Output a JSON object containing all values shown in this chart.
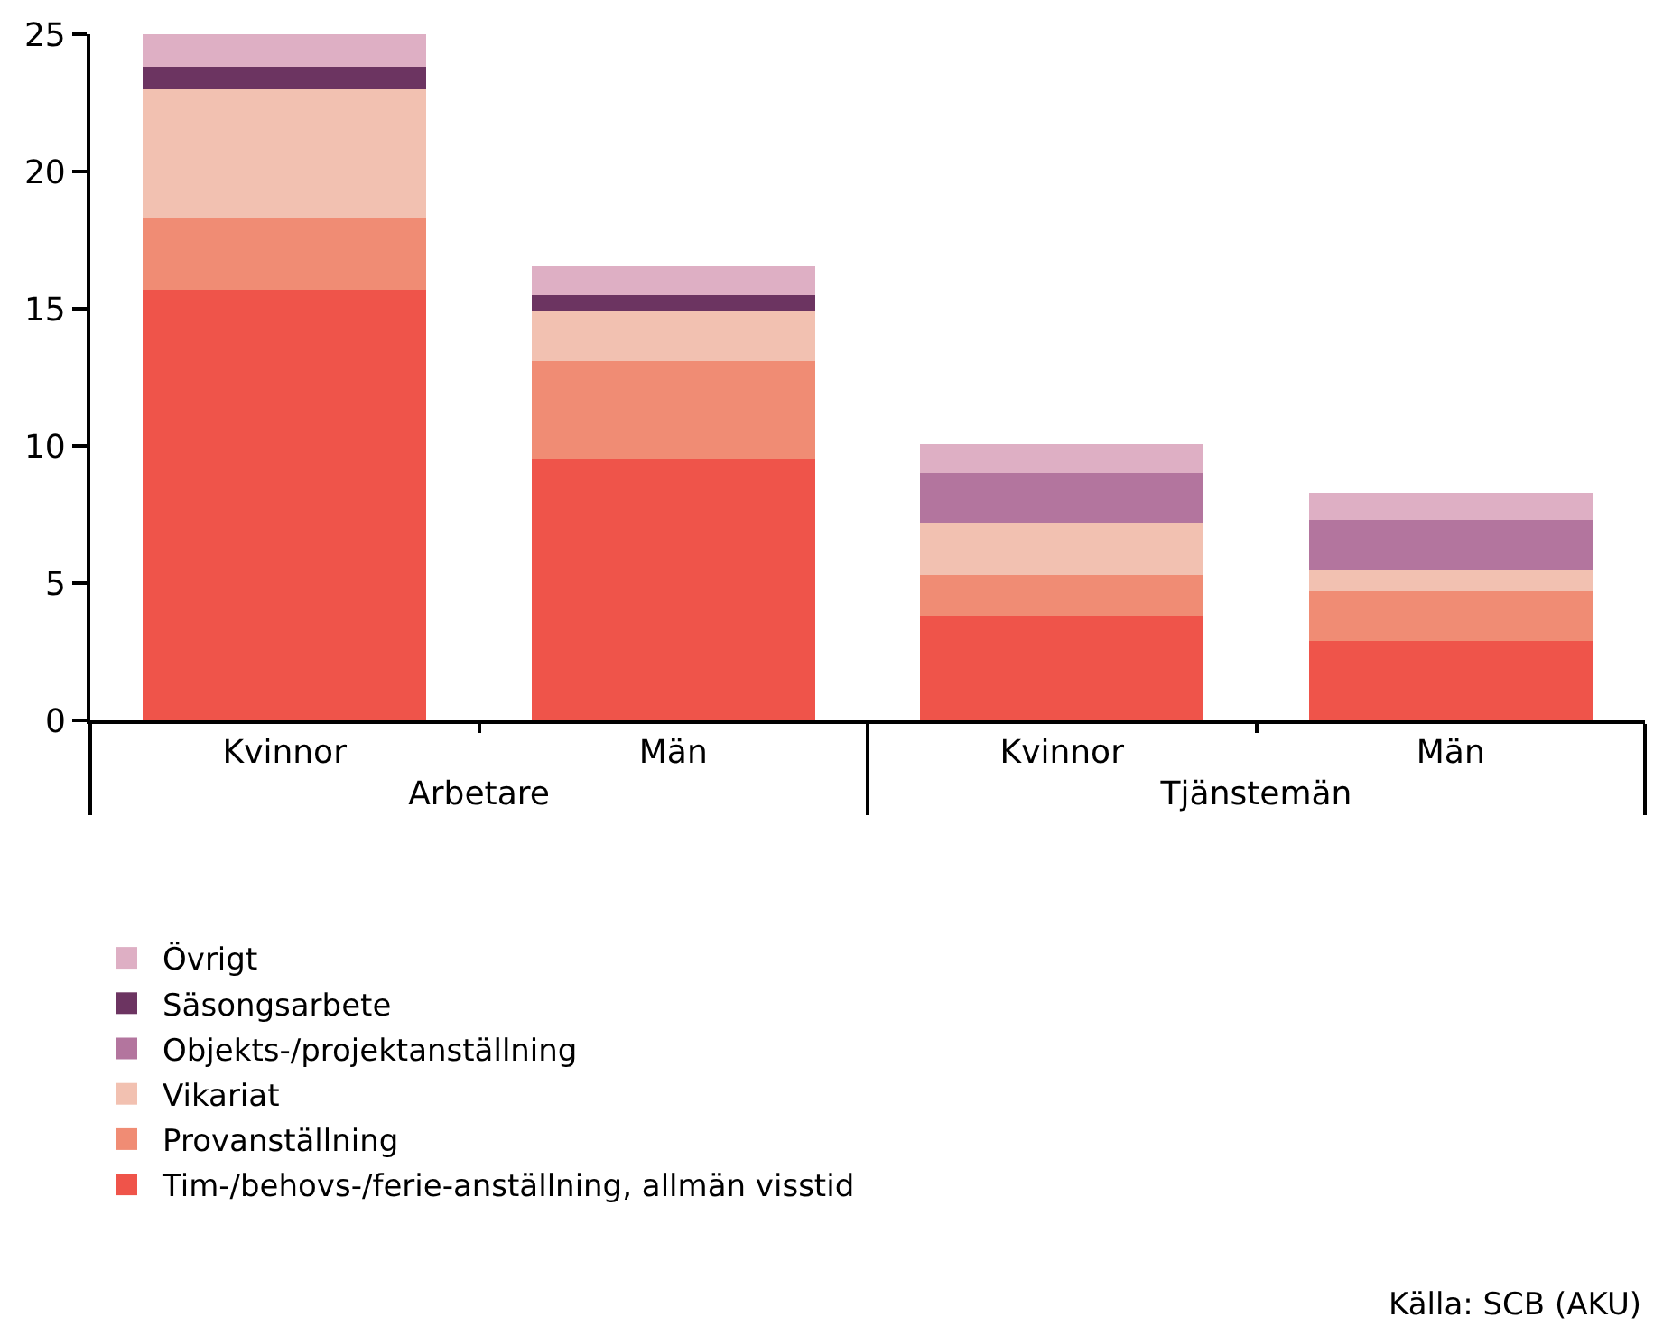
{
  "chart_data": {
    "type": "bar",
    "stacked": true,
    "categories": [
      "Kvinnor",
      "Män",
      "Kvinnor",
      "Män"
    ],
    "series": [
      {
        "name": "Tim-/behovs-/ferie-anställning, allmän visstid",
        "color": "#ef544a",
        "values": [
          15.7,
          9.5,
          3.8,
          2.9
        ]
      },
      {
        "name": "Provanställning",
        "color": "#f08c74",
        "values": [
          2.6,
          3.6,
          1.5,
          1.8
        ]
      },
      {
        "name": "Vikariat",
        "color": "#f2c1b1",
        "values": [
          4.7,
          1.8,
          1.9,
          0.8
        ]
      },
      {
        "name": "Objekts-/projektanställning",
        "color": "#b3759e",
        "values": [
          null,
          null,
          1.8,
          1.8
        ]
      },
      {
        "name": "Säsongsarbete",
        "color": "#6c3461",
        "values": [
          0.8,
          0.6,
          null,
          null
        ]
      },
      {
        "name": "Övrigt",
        "color": "#deafc4",
        "values": [
          1.25,
          1.05,
          1.05,
          1.0
        ]
      }
    ],
    "ylim": [
      0,
      25
    ],
    "yticks": [
      0,
      5,
      10,
      15,
      20,
      25
    ],
    "legend": "bottom left",
    "annotations": [
      "Arbetare",
      "Tjänstemän",
      "Källa: SCB (AKU)"
    ]
  }
}
